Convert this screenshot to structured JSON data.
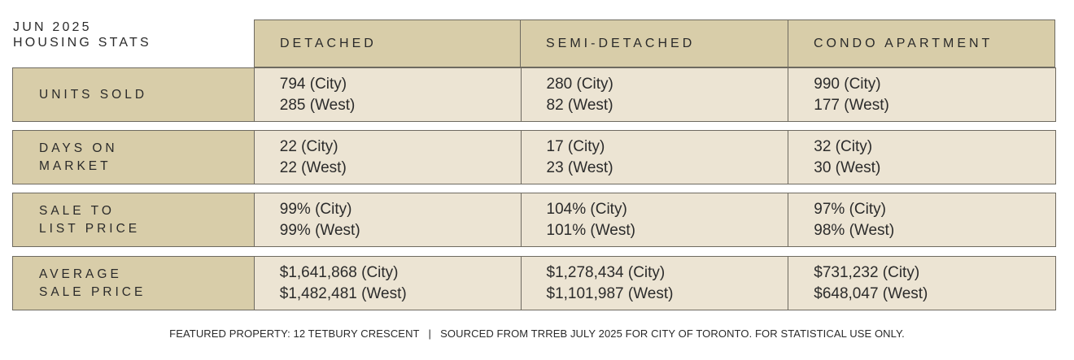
{
  "title": {
    "line1": "JUN 2025",
    "line2": "HOUSING STATS"
  },
  "columns": [
    "DETACHED",
    "SEMI-DETACHED",
    "CONDO APARTMENT"
  ],
  "rows": [
    {
      "label": [
        "UNITS SOLD"
      ],
      "cells": [
        [
          "794 (City)",
          "285 (West)"
        ],
        [
          "280 (City)",
          "82 (West)"
        ],
        [
          "990 (City)",
          "177 (West)"
        ]
      ]
    },
    {
      "label": [
        "DAYS ON",
        "MARKET"
      ],
      "cells": [
        [
          "22 (City)",
          "22 (West)"
        ],
        [
          "17 (City)",
          "23 (West)"
        ],
        [
          "32 (City)",
          "30 (West)"
        ]
      ]
    },
    {
      "label": [
        "SALE TO",
        "LIST PRICE"
      ],
      "cells": [
        [
          "99% (City)",
          "99% (West)"
        ],
        [
          "104% (City)",
          "101% (West)"
        ],
        [
          "97% (City)",
          "98% (West)"
        ]
      ]
    },
    {
      "label": [
        "AVERAGE",
        "SALE PRICE"
      ],
      "cells": [
        [
          "$1,641,868 (City)",
          "$1,482,481 (West)"
        ],
        [
          "$1,278,434 (City)",
          "$1,101,987 (West)"
        ],
        [
          "$731,232 (City)",
          "$648,047 (West)"
        ]
      ]
    }
  ],
  "footer": "FEATURED PROPERTY: 12 TETBURY CRESCENT   |   SOURCED FROM TRREB JULY 2025 FOR CITY OF TORONTO. FOR STATISTICAL USE ONLY.",
  "colors": {
    "header_bg": "#d8cda9",
    "cell_bg": "#ece4d3",
    "border": "#6e6a60"
  }
}
